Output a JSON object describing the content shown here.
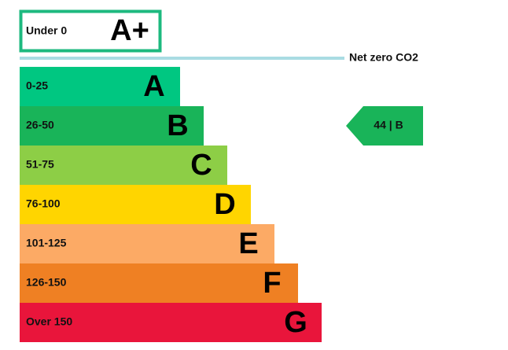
{
  "top_band": {
    "range": "Under 0",
    "letter": "A+",
    "color": "#1db97f"
  },
  "net_zero": {
    "label": "Net zero CO2",
    "color": "#a9dce3"
  },
  "bands": [
    {
      "range": "0-25",
      "letter": "A",
      "color": "#00c781"
    },
    {
      "range": "26-50",
      "letter": "B",
      "color": "#19b459"
    },
    {
      "range": "51-75",
      "letter": "C",
      "color": "#8dce46"
    },
    {
      "range": "76-100",
      "letter": "D",
      "color": "#ffd500"
    },
    {
      "range": "101-125",
      "letter": "E",
      "color": "#fcaa65"
    },
    {
      "range": "126-150",
      "letter": "F",
      "color": "#ef8023"
    },
    {
      "range": "Over 150",
      "letter": "G",
      "color": "#e9153b"
    }
  ],
  "marker": {
    "label": "44 | B",
    "band": 1
  }
}
